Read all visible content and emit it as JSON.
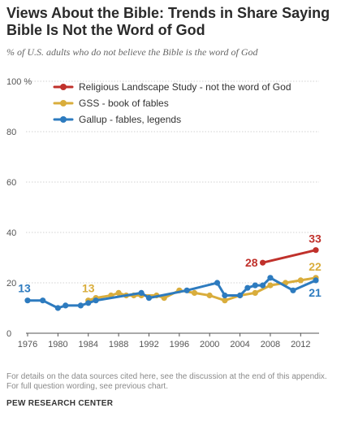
{
  "title": "Views About the Bible: Trends in Share Saying Bible Is Not the Word of God",
  "subtitle": "% of U.S. adults who do not believe the Bible is the word of God",
  "footnote": [
    "For details on the data sources cited here, see the discussion at the end of this appendix.",
    "For full question wording, see previous chart."
  ],
  "source": "PEW RESEARCH CENTER",
  "chart_data": {
    "type": "line",
    "xlim": [
      1976,
      2014
    ],
    "ylim": [
      0,
      100
    ],
    "x_ticks": [
      "1976",
      "1980",
      "1984",
      "1988",
      "1992",
      "1996",
      "2000",
      "2004",
      "2008",
      "2012"
    ],
    "y_ticks": [
      {
        "value": 0,
        "label": "0"
      },
      {
        "value": 20,
        "label": "20"
      },
      {
        "value": 40,
        "label": "40"
      },
      {
        "value": 60,
        "label": "60"
      },
      {
        "value": 80,
        "label": "80"
      },
      {
        "value": 100,
        "label": "100 %"
      }
    ],
    "grid": true,
    "legend_position": "top-left",
    "series": [
      {
        "name": "Religious Landscape Study - not the word of God",
        "color": "#c0312b",
        "points": [
          [
            2007,
            28
          ],
          [
            2014,
            33
          ]
        ],
        "start_label": "28",
        "end_label": "33"
      },
      {
        "name": "GSS - book of fables",
        "color": "#d9ad3c",
        "points": [
          [
            1984,
            13
          ],
          [
            1985,
            14
          ],
          [
            1987,
            15
          ],
          [
            1988,
            16
          ],
          [
            1989,
            15
          ],
          [
            1990,
            15
          ],
          [
            1991,
            15
          ],
          [
            1993,
            15
          ],
          [
            1994,
            14
          ],
          [
            1996,
            17
          ],
          [
            1998,
            16
          ],
          [
            2000,
            15
          ],
          [
            2002,
            13
          ],
          [
            2004,
            15
          ],
          [
            2006,
            16
          ],
          [
            2008,
            19
          ],
          [
            2010,
            20
          ],
          [
            2012,
            21
          ],
          [
            2014,
            22
          ]
        ],
        "start_label": "13",
        "end_label": "22"
      },
      {
        "name": "Gallup - fables, legends",
        "color": "#2d7bbf",
        "points": [
          [
            1976,
            13
          ],
          [
            1978,
            13
          ],
          [
            1980,
            10
          ],
          [
            1981,
            11
          ],
          [
            1983,
            11
          ],
          [
            1984,
            12
          ],
          [
            1985,
            13
          ],
          [
            1991,
            16
          ],
          [
            1992,
            14
          ],
          [
            1997,
            17
          ],
          [
            2001,
            20
          ],
          [
            2002,
            15
          ],
          [
            2004,
            15
          ],
          [
            2005,
            18
          ],
          [
            2006,
            19
          ],
          [
            2007,
            19
          ],
          [
            2008,
            22
          ],
          [
            2011,
            17
          ],
          [
            2014,
            21
          ]
        ],
        "start_label": "13",
        "end_label": "21"
      }
    ]
  }
}
